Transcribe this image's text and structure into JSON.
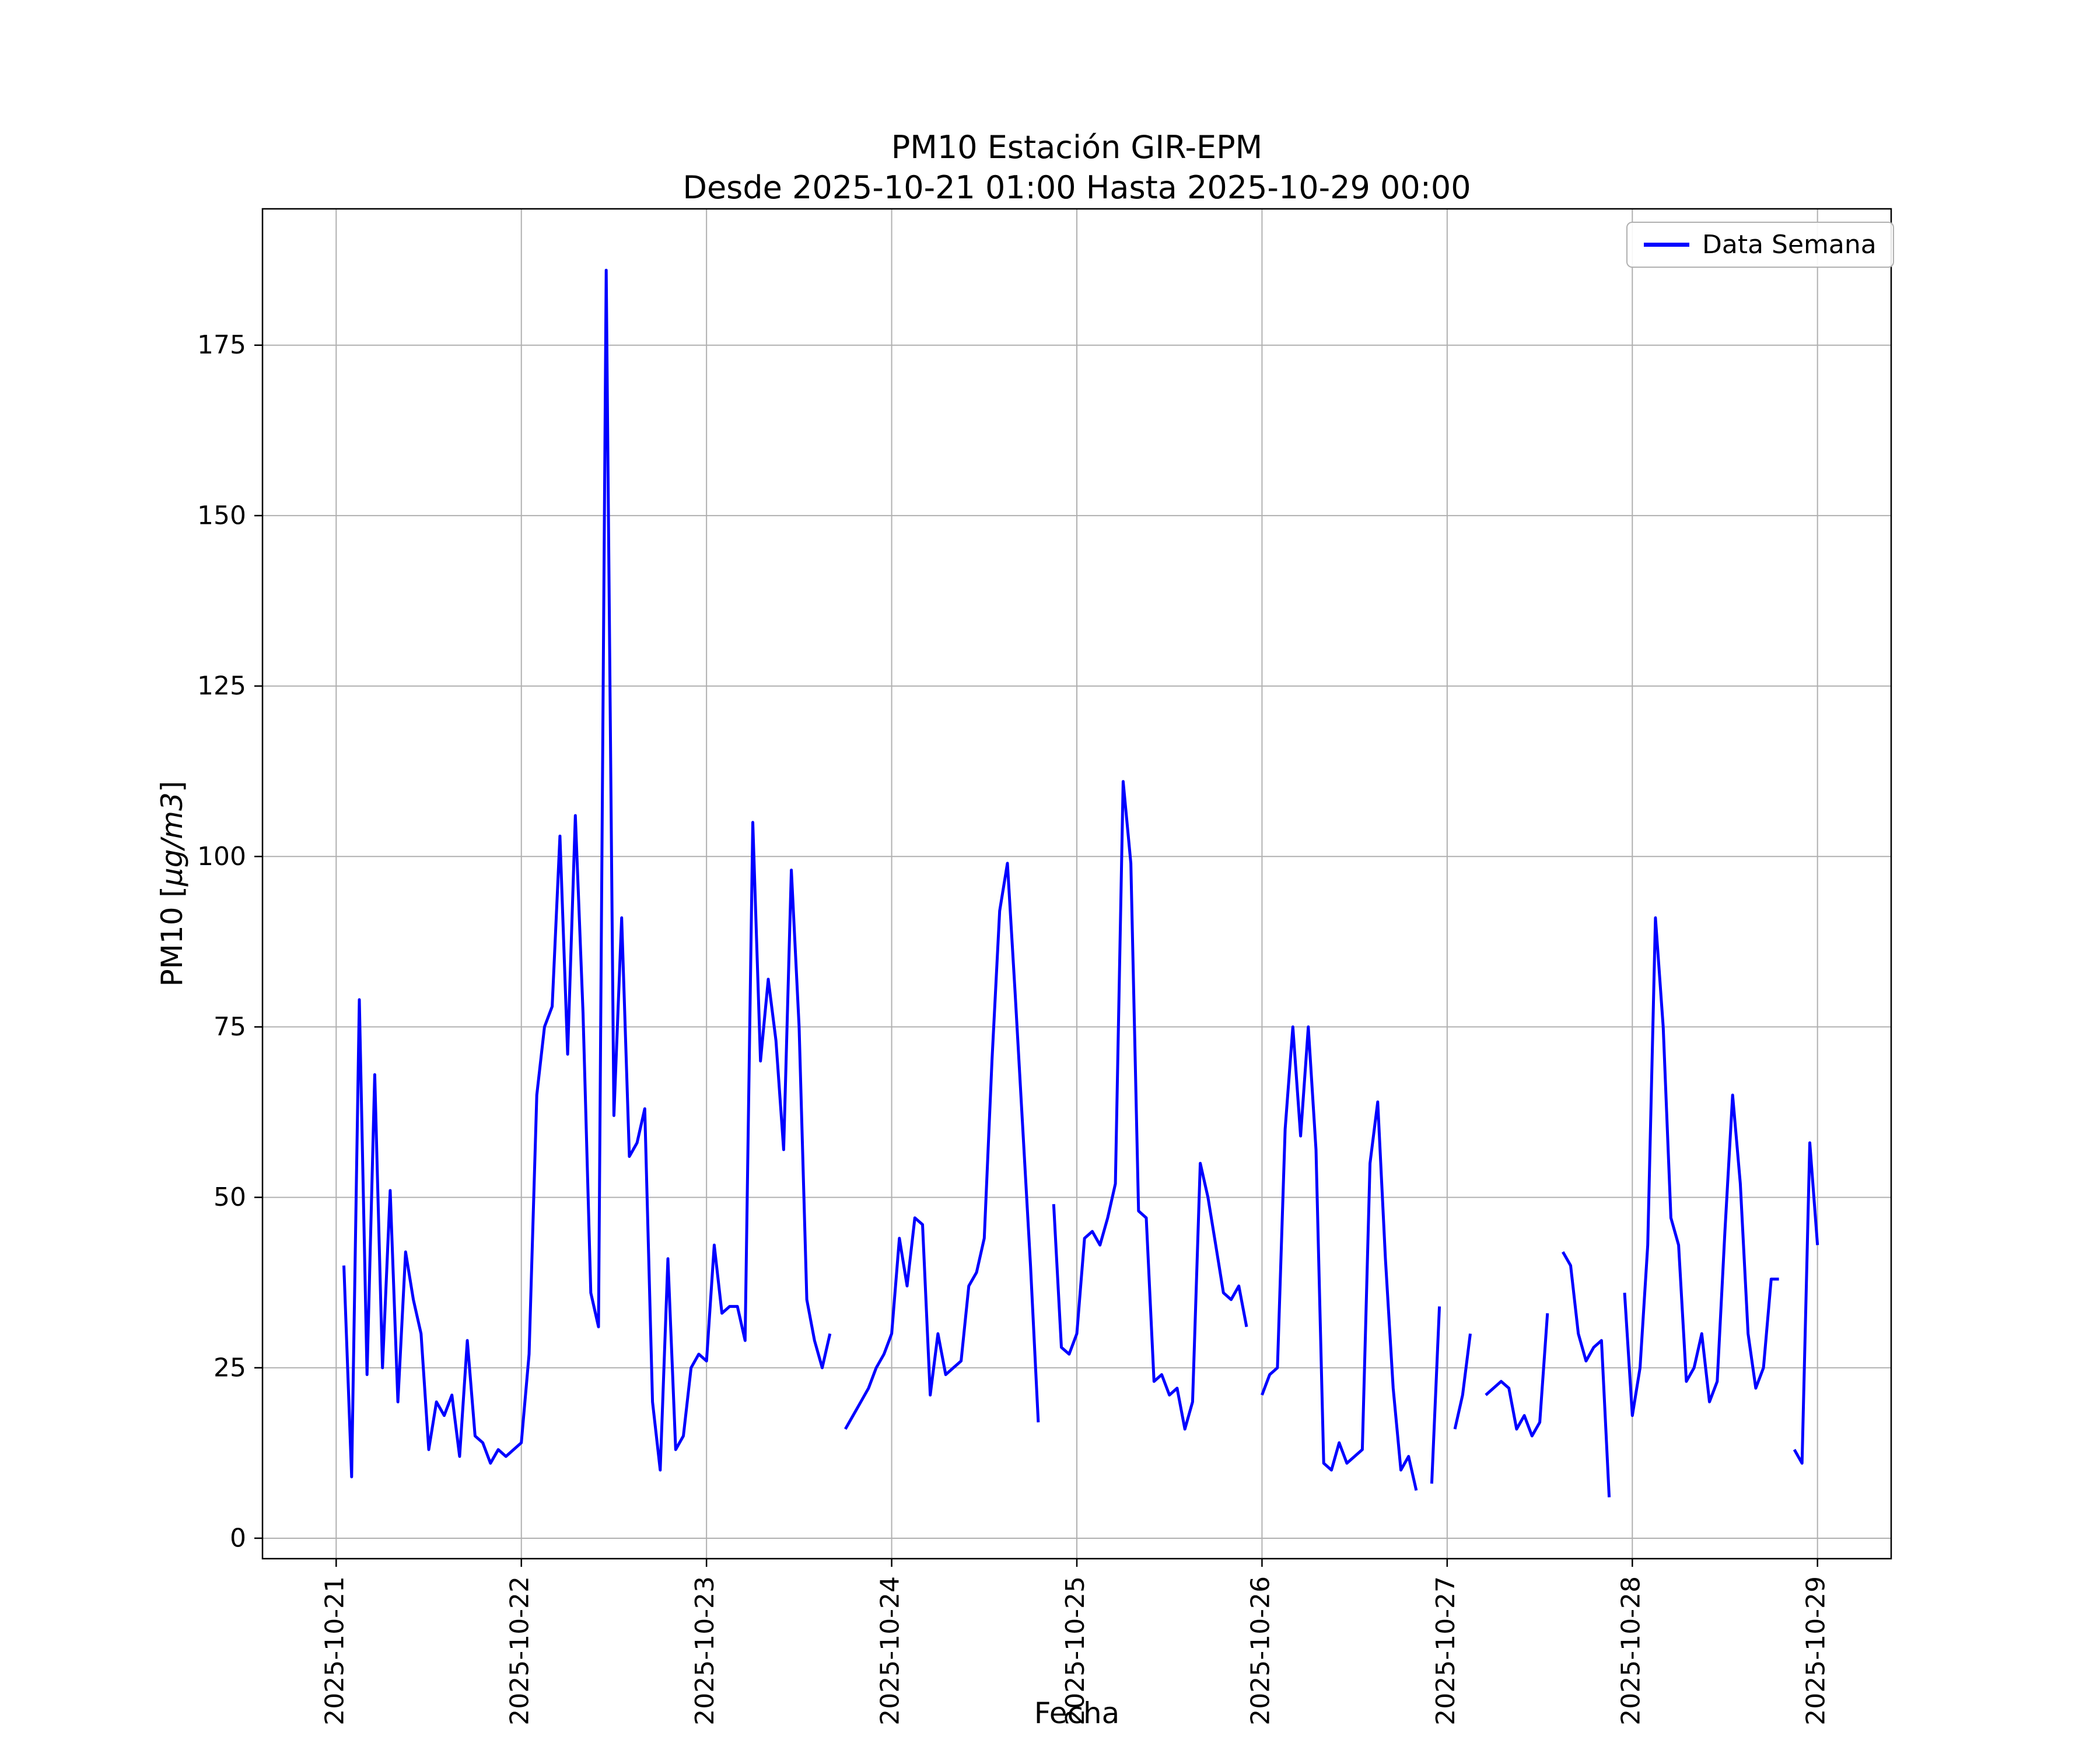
{
  "figure": {
    "title": "PM10 Estación GIR-EPM",
    "subtitle": "Desde 2025-10-21 01:00 Hasta 2025-10-29 00:00",
    "xlabel": "Fecha",
    "ylabel_prefix": "PM10 [",
    "ylabel_math": "μg/m3",
    "ylabel_suffix": "]",
    "legend_label": "Data Semana"
  },
  "chart_data": {
    "type": "line",
    "title": "PM10 Estación GIR-EPM",
    "subtitle": "Desde 2025-10-21 01:00 Hasta 2025-10-29 00:00",
    "xlabel": "Fecha",
    "ylabel": "PM10 [μg/m3]",
    "grid": true,
    "legend_position": "upper right",
    "line_color": "#0000ff",
    "grid_color": "#b0b0b0",
    "x_start": "2025-10-21 01:00",
    "x_step_hours": 1,
    "xlim_hours": [
      -10.55,
      200.55
    ],
    "ylim": [
      -3,
      195
    ],
    "x_tick_positions_hours": [
      -1,
      23,
      47,
      71,
      95,
      119,
      143,
      167,
      191
    ],
    "x_tick_labels": [
      "2025-10-21",
      "2025-10-22",
      "2025-10-23",
      "2025-10-24",
      "2025-10-25",
      "2025-10-26",
      "2025-10-27",
      "2025-10-28",
      "2025-10-29"
    ],
    "y_ticks": [
      0,
      25,
      50,
      75,
      100,
      125,
      150,
      175
    ],
    "series": [
      {
        "name": "Data Semana",
        "values": [
          40,
          9,
          79,
          24,
          68,
          25,
          51,
          20,
          42,
          35,
          30,
          13,
          20,
          18,
          21,
          12,
          29,
          15,
          14,
          11,
          13,
          12,
          13,
          14,
          27,
          65,
          75,
          78,
          103,
          71,
          106,
          77,
          36,
          31,
          186,
          62,
          91,
          56,
          58,
          63,
          20,
          10,
          41,
          13,
          15,
          25,
          27,
          26,
          43,
          33,
          34,
          34,
          29,
          105,
          70,
          82,
          73,
          57,
          98,
          75,
          35,
          29,
          25,
          30,
          null,
          16,
          18,
          20,
          22,
          25,
          27,
          30,
          44,
          37,
          47,
          46,
          21,
          30,
          24,
          25,
          26,
          37,
          39,
          44,
          70,
          92,
          99,
          80,
          60,
          40,
          17,
          null,
          49,
          28,
          27,
          30,
          44,
          45,
          43,
          47,
          52,
          111,
          99,
          48,
          47,
          23,
          24,
          21,
          22,
          16,
          20,
          55,
          50,
          43,
          36,
          35,
          37,
          31,
          null,
          21,
          24,
          25,
          60,
          75,
          59,
          75,
          57,
          11,
          10,
          14,
          11,
          12,
          13,
          55,
          64,
          41,
          22,
          10,
          12,
          7,
          null,
          8,
          34,
          null,
          16,
          21,
          30,
          null,
          21,
          22,
          23,
          22,
          16,
          18,
          15,
          17,
          33,
          null,
          42,
          40,
          30,
          26,
          28,
          29,
          6,
          null,
          36,
          18,
          25,
          43,
          91,
          75,
          47,
          43,
          23,
          25,
          30,
          20,
          23,
          45,
          65,
          52,
          30,
          22,
          25,
          38,
          38,
          null,
          13,
          11,
          58,
          43
        ]
      }
    ]
  }
}
